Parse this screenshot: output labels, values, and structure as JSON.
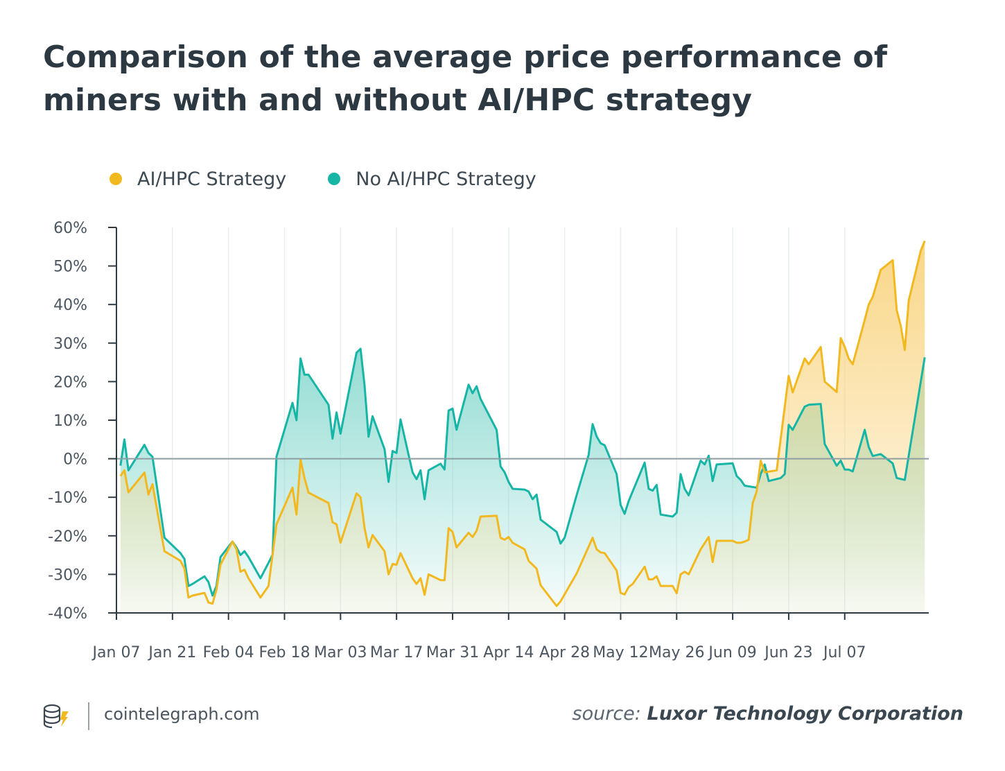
{
  "header": {
    "title": "Comparison of the average price performance of miners with and without AI/HPC strategy"
  },
  "legend": [
    {
      "label": "AI/HPC Strategy",
      "color": "#f2b820"
    },
    {
      "label": "No AI/HPC Strategy",
      "color": "#17b5a5"
    }
  ],
  "footer": {
    "site": "cointelegraph.com",
    "source_prefix": "source:",
    "source_name": "Luxor Technology Corporation",
    "logo_icon": "cointelegraph-logo-icon"
  },
  "colors": {
    "ai": "#f2b820",
    "noai": "#17b5a5",
    "ai_fill": "#f9d27a",
    "noai_fill": "#7fd6cb",
    "axis": "#2e3a44",
    "grid": "#e9edf0",
    "zero_line": "#8e9ca3"
  },
  "chart_data": {
    "type": "area",
    "title": "Comparison of the average price performance of miners with and without AI/HPC strategy",
    "xlabel": "",
    "ylabel": "",
    "y_unit": "%",
    "ylim": [
      -40,
      60
    ],
    "y_ticks": [
      60,
      50,
      40,
      30,
      20,
      10,
      0,
      -10,
      -20,
      -30,
      -40
    ],
    "y_tick_labels": [
      "60%",
      "50%",
      "40%",
      "30%",
      "20%",
      "10%",
      "0%",
      "-10%",
      "-20%",
      "-30%",
      "-40%"
    ],
    "x_ticks": [
      "Jan 07",
      "Jan 21",
      "Feb 04",
      "Feb 18",
      "Mar 03",
      "Mar 17",
      "Mar 31",
      "Apr 14",
      "Apr 28",
      "May 12",
      "May 26",
      "Jun 09",
      "Jun 23",
      "Jul 07"
    ],
    "grid": true,
    "legend_position": "top-left",
    "series": [
      {
        "name": "AI/HPC Strategy",
        "points": [
          [
            "2024-01-08",
            -4.5
          ],
          [
            "2024-01-09",
            -3.0
          ],
          [
            "2024-01-10",
            -8.7
          ],
          [
            "2024-01-14",
            -3.6
          ],
          [
            "2024-01-15",
            -9.3
          ],
          [
            "2024-01-16",
            -6.6
          ],
          [
            "2024-01-19",
            -24.0
          ],
          [
            "2024-01-23",
            -26.5
          ],
          [
            "2024-01-24",
            -28.5
          ],
          [
            "2024-01-25",
            -36.0
          ],
          [
            "2024-01-26",
            -35.5
          ],
          [
            "2024-01-29",
            -34.8
          ],
          [
            "2024-01-30",
            -37.3
          ],
          [
            "2024-01-31",
            -37.6
          ],
          [
            "2024-02-01",
            -34.0
          ],
          [
            "2024-02-02",
            -27.5
          ],
          [
            "2024-02-05",
            -21.5
          ],
          [
            "2024-02-06",
            -23.5
          ],
          [
            "2024-02-07",
            -29.3
          ],
          [
            "2024-02-08",
            -28.8
          ],
          [
            "2024-02-09",
            -31.0
          ],
          [
            "2024-02-12",
            -36.0
          ],
          [
            "2024-02-14",
            -33.0
          ],
          [
            "2024-02-15",
            -25.0
          ],
          [
            "2024-02-16",
            -17.0
          ],
          [
            "2024-02-20",
            -7.5
          ],
          [
            "2024-02-21",
            -14.5
          ],
          [
            "2024-02-22",
            -0.2
          ],
          [
            "2024-02-23",
            -5.0
          ],
          [
            "2024-02-24",
            -8.8
          ],
          [
            "2024-02-29",
            -11.5
          ],
          [
            "2024-03-01",
            -16.5
          ],
          [
            "2024-03-02",
            -17.0
          ],
          [
            "2024-03-03",
            -21.8
          ],
          [
            "2024-03-07",
            -9.0
          ],
          [
            "2024-03-08",
            -10.0
          ],
          [
            "2024-03-09",
            -18.0
          ],
          [
            "2024-03-10",
            -23.0
          ],
          [
            "2024-03-11",
            -19.8
          ],
          [
            "2024-03-14",
            -24.0
          ],
          [
            "2024-03-15",
            -30.0
          ],
          [
            "2024-03-16",
            -27.3
          ],
          [
            "2024-03-17",
            -27.5
          ],
          [
            "2024-03-18",
            -24.5
          ],
          [
            "2024-03-21",
            -31.0
          ],
          [
            "2024-03-22",
            -32.5
          ],
          [
            "2024-03-23",
            -31.0
          ],
          [
            "2024-03-24",
            -35.3
          ],
          [
            "2024-03-25",
            -30.0
          ],
          [
            "2024-03-28",
            -31.5
          ],
          [
            "2024-03-29",
            -31.5
          ],
          [
            "2024-03-30",
            -18.0
          ],
          [
            "2024-03-31",
            -19.0
          ],
          [
            "2024-04-01",
            -23.0
          ],
          [
            "2024-04-04",
            -19.2
          ],
          [
            "2024-04-05",
            -20.3
          ],
          [
            "2024-04-06",
            -18.7
          ],
          [
            "2024-04-07",
            -15.0
          ],
          [
            "2024-04-11",
            -14.8
          ],
          [
            "2024-04-12",
            -20.5
          ],
          [
            "2024-04-13",
            -21.0
          ],
          [
            "2024-04-14",
            -20.3
          ],
          [
            "2024-04-15",
            -21.8
          ],
          [
            "2024-04-18",
            -23.5
          ],
          [
            "2024-04-19",
            -26.5
          ],
          [
            "2024-04-20",
            -27.5
          ],
          [
            "2024-04-21",
            -28.5
          ],
          [
            "2024-04-22",
            -32.8
          ],
          [
            "2024-04-26",
            -38.2
          ],
          [
            "2024-04-27",
            -37.0
          ],
          [
            "2024-05-01",
            -29.8
          ],
          [
            "2024-05-05",
            -20.5
          ],
          [
            "2024-05-06",
            -23.5
          ],
          [
            "2024-05-07",
            -24.3
          ],
          [
            "2024-05-08",
            -24.5
          ],
          [
            "2024-05-11",
            -29.0
          ],
          [
            "2024-05-12",
            -34.8
          ],
          [
            "2024-05-13",
            -35.2
          ],
          [
            "2024-05-14",
            -33.3
          ],
          [
            "2024-05-15",
            -32.5
          ],
          [
            "2024-05-18",
            -28.0
          ],
          [
            "2024-05-19",
            -31.3
          ],
          [
            "2024-05-20",
            -31.3
          ],
          [
            "2024-05-21",
            -30.5
          ],
          [
            "2024-05-22",
            -33.0
          ],
          [
            "2024-05-25",
            -33.0
          ],
          [
            "2024-05-26",
            -34.9
          ],
          [
            "2024-05-27",
            -30.0
          ],
          [
            "2024-05-28",
            -29.3
          ],
          [
            "2024-05-29",
            -30.0
          ],
          [
            "2024-06-01",
            -23.5
          ],
          [
            "2024-06-03",
            -20.3
          ],
          [
            "2024-06-04",
            -26.8
          ],
          [
            "2024-06-05",
            -21.3
          ],
          [
            "2024-06-08",
            -21.3
          ],
          [
            "2024-06-09",
            -21.3
          ],
          [
            "2024-06-10",
            -21.8
          ],
          [
            "2024-06-11",
            -21.8
          ],
          [
            "2024-06-12",
            -21.5
          ],
          [
            "2024-06-13",
            -21.0
          ],
          [
            "2024-06-14",
            -11.5
          ],
          [
            "2024-06-15",
            -8.5
          ],
          [
            "2024-06-16",
            -0.5
          ],
          [
            "2024-06-17",
            -3.5
          ],
          [
            "2024-06-20",
            -3.0
          ],
          [
            "2024-06-23",
            21.5
          ],
          [
            "2024-06-24",
            17.2
          ],
          [
            "2024-06-27",
            26.0
          ],
          [
            "2024-06-28",
            24.5
          ],
          [
            "2024-07-01",
            29.0
          ],
          [
            "2024-07-02",
            20.0
          ],
          [
            "2024-07-05",
            17.3
          ],
          [
            "2024-07-06",
            31.3
          ],
          [
            "2024-07-07",
            29.0
          ],
          [
            "2024-07-08",
            26.0
          ],
          [
            "2024-07-09",
            24.5
          ],
          [
            "2024-07-12",
            36.0
          ],
          [
            "2024-07-13",
            40.0
          ],
          [
            "2024-07-14",
            42.0
          ],
          [
            "2024-07-16",
            49.0
          ],
          [
            "2024-07-19",
            51.5
          ],
          [
            "2024-07-20",
            38.5
          ],
          [
            "2024-07-21",
            34.5
          ],
          [
            "2024-07-22",
            28.2
          ],
          [
            "2024-07-23",
            41.0
          ],
          [
            "2024-07-26",
            54.0
          ],
          [
            "2024-07-27",
            56.5
          ]
        ]
      },
      {
        "name": "No AI/HPC Strategy",
        "points": [
          [
            "2024-01-08",
            -1.8
          ],
          [
            "2024-01-09",
            5.0
          ],
          [
            "2024-01-10",
            -3.0
          ],
          [
            "2024-01-14",
            3.6
          ],
          [
            "2024-01-15",
            1.5
          ],
          [
            "2024-01-16",
            0.5
          ],
          [
            "2024-01-19",
            -20.5
          ],
          [
            "2024-01-23",
            -24.5
          ],
          [
            "2024-01-24",
            -26.0
          ],
          [
            "2024-01-25",
            -33.0
          ],
          [
            "2024-01-26",
            -32.5
          ],
          [
            "2024-01-29",
            -30.5
          ],
          [
            "2024-01-30",
            -32.0
          ],
          [
            "2024-01-31",
            -35.5
          ],
          [
            "2024-02-01",
            -33.0
          ],
          [
            "2024-02-02",
            -25.5
          ],
          [
            "2024-02-05",
            -21.5
          ],
          [
            "2024-02-06",
            -23.0
          ],
          [
            "2024-02-07",
            -25.0
          ],
          [
            "2024-02-08",
            -24.0
          ],
          [
            "2024-02-09",
            -25.5
          ],
          [
            "2024-02-12",
            -31.0
          ],
          [
            "2024-02-14",
            -27.0
          ],
          [
            "2024-02-15",
            -25.0
          ],
          [
            "2024-02-16",
            0.5
          ],
          [
            "2024-02-20",
            14.5
          ],
          [
            "2024-02-21",
            10.0
          ],
          [
            "2024-02-22",
            26.0
          ],
          [
            "2024-02-23",
            21.8
          ],
          [
            "2024-02-24",
            21.8
          ],
          [
            "2024-02-29",
            14.0
          ],
          [
            "2024-03-01",
            5.2
          ],
          [
            "2024-03-02",
            12.0
          ],
          [
            "2024-03-03",
            6.5
          ],
          [
            "2024-03-07",
            27.5
          ],
          [
            "2024-03-08",
            28.5
          ],
          [
            "2024-03-09",
            19.0
          ],
          [
            "2024-03-10",
            5.7
          ],
          [
            "2024-03-11",
            11.0
          ],
          [
            "2024-03-14",
            2.5
          ],
          [
            "2024-03-15",
            -6.0
          ],
          [
            "2024-03-16",
            2.0
          ],
          [
            "2024-03-17",
            1.5
          ],
          [
            "2024-03-18",
            10.2
          ],
          [
            "2024-03-21",
            -3.5
          ],
          [
            "2024-03-22",
            -5.3
          ],
          [
            "2024-03-23",
            -3.0
          ],
          [
            "2024-03-24",
            -10.5
          ],
          [
            "2024-03-25",
            -3.0
          ],
          [
            "2024-03-28",
            -1.3
          ],
          [
            "2024-03-29",
            -2.8
          ],
          [
            "2024-03-30",
            12.5
          ],
          [
            "2024-03-31",
            13.0
          ],
          [
            "2024-04-01",
            7.5
          ],
          [
            "2024-04-04",
            19.2
          ],
          [
            "2024-04-05",
            17.0
          ],
          [
            "2024-04-06",
            18.8
          ],
          [
            "2024-04-07",
            15.5
          ],
          [
            "2024-04-11",
            7.5
          ],
          [
            "2024-04-12",
            -2.0
          ],
          [
            "2024-04-13",
            -3.5
          ],
          [
            "2024-04-14",
            -6.0
          ],
          [
            "2024-04-15",
            -7.8
          ],
          [
            "2024-04-18",
            -8.0
          ],
          [
            "2024-04-19",
            -8.5
          ],
          [
            "2024-04-20",
            -10.5
          ],
          [
            "2024-04-21",
            -9.3
          ],
          [
            "2024-04-22",
            -15.8
          ],
          [
            "2024-04-26",
            -19.0
          ],
          [
            "2024-04-27",
            -22.0
          ],
          [
            "2024-04-28",
            -20.5
          ],
          [
            "2024-05-01",
            -9.5
          ],
          [
            "2024-05-04",
            1.0
          ],
          [
            "2024-05-05",
            9.0
          ],
          [
            "2024-05-06",
            5.8
          ],
          [
            "2024-05-07",
            4.0
          ],
          [
            "2024-05-08",
            3.5
          ],
          [
            "2024-05-11",
            -4.0
          ],
          [
            "2024-05-12",
            -12.0
          ],
          [
            "2024-05-13",
            -14.3
          ],
          [
            "2024-05-14",
            -11.0
          ],
          [
            "2024-05-18",
            -1.0
          ],
          [
            "2024-05-19",
            -7.8
          ],
          [
            "2024-05-20",
            -8.3
          ],
          [
            "2024-05-21",
            -6.8
          ],
          [
            "2024-05-22",
            -14.5
          ],
          [
            "2024-05-25",
            -15.0
          ],
          [
            "2024-05-26",
            -14.0
          ],
          [
            "2024-05-27",
            -4.0
          ],
          [
            "2024-05-28",
            -7.8
          ],
          [
            "2024-05-29",
            -9.5
          ],
          [
            "2024-06-01",
            -0.5
          ],
          [
            "2024-06-02",
            -1.5
          ],
          [
            "2024-06-03",
            0.8
          ],
          [
            "2024-06-04",
            -5.8
          ],
          [
            "2024-06-05",
            -1.5
          ],
          [
            "2024-06-09",
            -1.2
          ],
          [
            "2024-06-10",
            -4.5
          ],
          [
            "2024-06-11",
            -5.5
          ],
          [
            "2024-06-12",
            -7.0
          ],
          [
            "2024-06-15",
            -7.5
          ],
          [
            "2024-06-16",
            -4.0
          ],
          [
            "2024-06-17",
            -1.5
          ],
          [
            "2024-06-18",
            -5.8
          ],
          [
            "2024-06-21",
            -5.0
          ],
          [
            "2024-06-22",
            -4.0
          ],
          [
            "2024-06-23",
            8.8
          ],
          [
            "2024-06-24",
            7.5
          ],
          [
            "2024-06-27",
            13.5
          ],
          [
            "2024-06-28",
            14.0
          ],
          [
            "2024-07-01",
            14.2
          ],
          [
            "2024-07-02",
            3.8
          ],
          [
            "2024-07-05",
            -1.8
          ],
          [
            "2024-07-06",
            -0.5
          ],
          [
            "2024-07-07",
            -2.8
          ],
          [
            "2024-07-08",
            -2.8
          ],
          [
            "2024-07-09",
            -3.3
          ],
          [
            "2024-07-12",
            7.5
          ],
          [
            "2024-07-13",
            3.0
          ],
          [
            "2024-07-14",
            0.7
          ],
          [
            "2024-07-16",
            1.2
          ],
          [
            "2024-07-19",
            -1.2
          ],
          [
            "2024-07-20",
            -5.0
          ],
          [
            "2024-07-22",
            -5.5
          ],
          [
            "2024-07-27",
            26.3
          ]
        ]
      }
    ]
  }
}
